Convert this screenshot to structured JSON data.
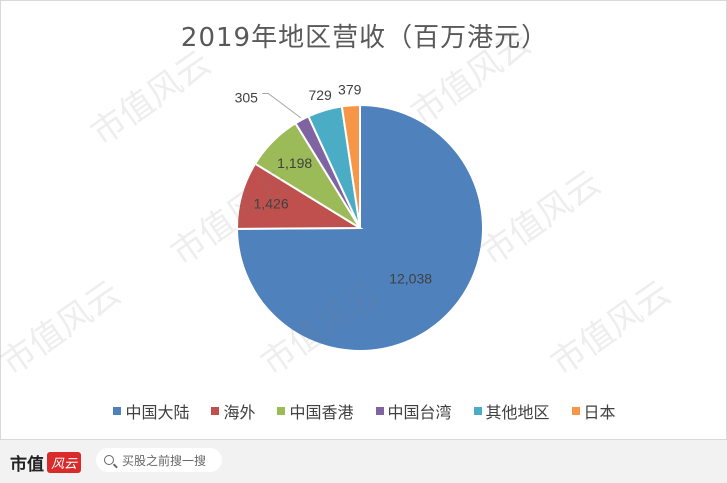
{
  "chart_data": {
    "type": "pie",
    "title": "2019年地区营收（百万港元）",
    "categories": [
      "中国大陆",
      "海外",
      "中国香港",
      "中国台湾",
      "其他地区",
      "日本"
    ],
    "values": [
      12038,
      1426,
      1198,
      305,
      729,
      379
    ],
    "data_labels": [
      "12,038",
      "1,426",
      "1,198",
      "305",
      "729",
      "379"
    ],
    "colors": [
      "#4f81bd",
      "#c0504d",
      "#9bbb59",
      "#8064a2",
      "#4bacc6",
      "#f79646"
    ],
    "legend_position": "bottom"
  },
  "watermark": "市值风云",
  "footer": {
    "brand": "市值",
    "brand_logo": "风云",
    "search_placeholder": "买股之前搜一搜"
  }
}
